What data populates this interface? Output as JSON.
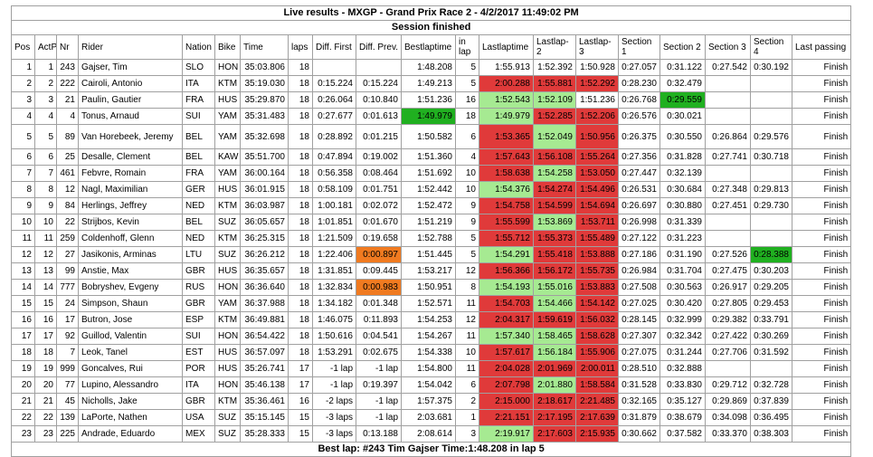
{
  "title": "Live results - MXGP - Grand Prix Race 2 - 4/2/2017 11:49:02 PM",
  "status": "Session finished",
  "footer": "Best lap: #243 Tim Gajser Time:1:48.208 in lap 5",
  "headers": [
    "Pos",
    "ActP",
    "Nr",
    "Rider",
    "Nation",
    "Bike",
    "Time",
    "laps",
    "Diff. First",
    "Diff. Prev.",
    "Bestlaptime",
    "in lap",
    "Lastlaptime",
    "Lastlap-2",
    "Lastlap-3",
    "Section 1",
    "Section 2",
    "Section 3",
    "Section 4",
    "Last passing"
  ],
  "rows": [
    {
      "pos": "1",
      "actp": "1",
      "nr": "243",
      "rider": "Gajser, Tim",
      "nation": "SLO",
      "bike": "HON",
      "time": "35:03.806",
      "laps": "18",
      "dfirst": "",
      "dprev": "",
      "best": "1:48.208",
      "inlap": "5",
      "last": "1:55.913",
      "l2": "1:52.392",
      "l3": "1:50.928",
      "s1": "0:27.057",
      "s2": "0:31.122",
      "s3": "0:27.542",
      "s4": "0:30.192",
      "lastp": "Finish"
    },
    {
      "pos": "2",
      "actp": "2",
      "nr": "222",
      "rider": "Cairoli, Antonio",
      "nation": "ITA",
      "bike": "KTM",
      "time": "35:19.030",
      "laps": "18",
      "dfirst": "0:15.224",
      "dprev": "0:15.224",
      "best": "1:49.213",
      "inlap": "5",
      "last": "2:00.288",
      "l2": "1:55.881",
      "l3": "1:52.292",
      "s1": "0:28.230",
      "s2": "0:32.479",
      "s3": "",
      "s4": "",
      "lastp": "Finish"
    },
    {
      "pos": "3",
      "actp": "3",
      "nr": "21",
      "rider": "Paulin, Gautier",
      "nation": "FRA",
      "bike": "HUS",
      "time": "35:29.870",
      "laps": "18",
      "dfirst": "0:26.064",
      "dprev": "0:10.840",
      "best": "1:51.236",
      "inlap": "16",
      "last": "1:52.543",
      "l2": "1:52.109",
      "l3": "1:51.236",
      "s1": "0:26.768",
      "s2": "0:29.559",
      "s3": "",
      "s4": "",
      "lastp": "Finish"
    },
    {
      "pos": "4",
      "actp": "4",
      "nr": "4",
      "rider": "Tonus, Arnaud",
      "nation": "SUI",
      "bike": "YAM",
      "time": "35:31.483",
      "laps": "18",
      "dfirst": "0:27.677",
      "dprev": "0:01.613",
      "best": "1:49.979",
      "inlap": "18",
      "last": "1:49.979",
      "l2": "1:52.285",
      "l3": "1:52.206",
      "s1": "0:26.576",
      "s2": "0:30.021",
      "s3": "",
      "s4": "",
      "lastp": "Finish"
    },
    {
      "pos": "5",
      "actp": "5",
      "nr": "89",
      "rider": "Van Horebeek, Jeremy",
      "nation": "BEL",
      "bike": "YAM",
      "time": "35:32.698",
      "laps": "18",
      "dfirst": "0:28.892",
      "dprev": "0:01.215",
      "best": "1:50.582",
      "inlap": "6",
      "last": "1:53.365",
      "l2": "1:52.049",
      "l3": "1:50.956",
      "s1": "0:26.375",
      "s2": "0:30.550",
      "s3": "0:26.864",
      "s4": "0:29.576",
      "lastp": "Finish"
    },
    {
      "pos": "6",
      "actp": "6",
      "nr": "25",
      "rider": "Desalle, Clement",
      "nation": "BEL",
      "bike": "KAW",
      "time": "35:51.700",
      "laps": "18",
      "dfirst": "0:47.894",
      "dprev": "0:19.002",
      "best": "1:51.360",
      "inlap": "4",
      "last": "1:57.643",
      "l2": "1:56.108",
      "l3": "1:55.264",
      "s1": "0:27.356",
      "s2": "0:31.828",
      "s3": "0:27.741",
      "s4": "0:30.718",
      "lastp": "Finish"
    },
    {
      "pos": "7",
      "actp": "7",
      "nr": "461",
      "rider": "Febvre, Romain",
      "nation": "FRA",
      "bike": "YAM",
      "time": "36:00.164",
      "laps": "18",
      "dfirst": "0:56.358",
      "dprev": "0:08.464",
      "best": "1:51.692",
      "inlap": "10",
      "last": "1:58.638",
      "l2": "1:54.258",
      "l3": "1:53.050",
      "s1": "0:27.447",
      "s2": "0:32.139",
      "s3": "",
      "s4": "",
      "lastp": "Finish"
    },
    {
      "pos": "8",
      "actp": "8",
      "nr": "12",
      "rider": "Nagl, Maximilian",
      "nation": "GER",
      "bike": "HUS",
      "time": "36:01.915",
      "laps": "18",
      "dfirst": "0:58.109",
      "dprev": "0:01.751",
      "best": "1:52.442",
      "inlap": "10",
      "last": "1:54.376",
      "l2": "1:54.274",
      "l3": "1:54.496",
      "s1": "0:26.531",
      "s2": "0:30.684",
      "s3": "0:27.348",
      "s4": "0:29.813",
      "lastp": "Finish"
    },
    {
      "pos": "9",
      "actp": "9",
      "nr": "84",
      "rider": "Herlings, Jeffrey",
      "nation": "NED",
      "bike": "KTM",
      "time": "36:03.987",
      "laps": "18",
      "dfirst": "1:00.181",
      "dprev": "0:02.072",
      "best": "1:52.472",
      "inlap": "9",
      "last": "1:54.758",
      "l2": "1:54.599",
      "l3": "1:54.694",
      "s1": "0:26.697",
      "s2": "0:30.880",
      "s3": "0:27.451",
      "s4": "0:29.730",
      "lastp": "Finish"
    },
    {
      "pos": "10",
      "actp": "10",
      "nr": "22",
      "rider": "Strijbos, Kevin",
      "nation": "BEL",
      "bike": "SUZ",
      "time": "36:05.657",
      "laps": "18",
      "dfirst": "1:01.851",
      "dprev": "0:01.670",
      "best": "1:51.219",
      "inlap": "9",
      "last": "1:55.599",
      "l2": "1:53.869",
      "l3": "1:53.711",
      "s1": "0:26.998",
      "s2": "0:31.339",
      "s3": "",
      "s4": "",
      "lastp": "Finish"
    },
    {
      "pos": "11",
      "actp": "11",
      "nr": "259",
      "rider": "Coldenhoff, Glenn",
      "nation": "NED",
      "bike": "KTM",
      "time": "36:25.315",
      "laps": "18",
      "dfirst": "1:21.509",
      "dprev": "0:19.658",
      "best": "1:52.788",
      "inlap": "5",
      "last": "1:55.712",
      "l2": "1:55.373",
      "l3": "1:55.489",
      "s1": "0:27.122",
      "s2": "0:31.223",
      "s3": "",
      "s4": "",
      "lastp": "Finish"
    },
    {
      "pos": "12",
      "actp": "12",
      "nr": "27",
      "rider": "Jasikonis, Arminas",
      "nation": "LTU",
      "bike": "SUZ",
      "time": "36:26.212",
      "laps": "18",
      "dfirst": "1:22.406",
      "dprev": "0:00.897",
      "best": "1:51.445",
      "inlap": "5",
      "last": "1:54.291",
      "l2": "1:55.418",
      "l3": "1:53.888",
      "s1": "0:27.186",
      "s2": "0:31.190",
      "s3": "0:27.526",
      "s4": "0:28.388",
      "lastp": "Finish"
    },
    {
      "pos": "13",
      "actp": "13",
      "nr": "99",
      "rider": "Anstie, Max",
      "nation": "GBR",
      "bike": "HUS",
      "time": "36:35.657",
      "laps": "18",
      "dfirst": "1:31.851",
      "dprev": "0:09.445",
      "best": "1:53.217",
      "inlap": "12",
      "last": "1:56.366",
      "l2": "1:56.172",
      "l3": "1:55.735",
      "s1": "0:26.984",
      "s2": "0:31.704",
      "s3": "0:27.475",
      "s4": "0:30.203",
      "lastp": "Finish"
    },
    {
      "pos": "14",
      "actp": "14",
      "nr": "777",
      "rider": "Bobryshev, Evgeny",
      "nation": "RUS",
      "bike": "HON",
      "time": "36:36.640",
      "laps": "18",
      "dfirst": "1:32.834",
      "dprev": "0:00.983",
      "best": "1:50.951",
      "inlap": "8",
      "last": "1:54.193",
      "l2": "1:55.016",
      "l3": "1:53.883",
      "s1": "0:27.508",
      "s2": "0:30.563",
      "s3": "0:26.917",
      "s4": "0:29.205",
      "lastp": "Finish"
    },
    {
      "pos": "15",
      "actp": "15",
      "nr": "24",
      "rider": "Simpson, Shaun",
      "nation": "GBR",
      "bike": "YAM",
      "time": "36:37.988",
      "laps": "18",
      "dfirst": "1:34.182",
      "dprev": "0:01.348",
      "best": "1:52.571",
      "inlap": "11",
      "last": "1:54.703",
      "l2": "1:54.466",
      "l3": "1:54.142",
      "s1": "0:27.025",
      "s2": "0:30.420",
      "s3": "0:27.805",
      "s4": "0:29.453",
      "lastp": "Finish"
    },
    {
      "pos": "16",
      "actp": "16",
      "nr": "17",
      "rider": "Butron, Jose",
      "nation": "ESP",
      "bike": "KTM",
      "time": "36:49.881",
      "laps": "18",
      "dfirst": "1:46.075",
      "dprev": "0:11.893",
      "best": "1:54.253",
      "inlap": "12",
      "last": "2:04.317",
      "l2": "1:59.619",
      "l3": "1:56.032",
      "s1": "0:28.145",
      "s2": "0:32.999",
      "s3": "0:29.382",
      "s4": "0:33.791",
      "lastp": "Finish"
    },
    {
      "pos": "17",
      "actp": "17",
      "nr": "92",
      "rider": "Guillod, Valentin",
      "nation": "SUI",
      "bike": "HON",
      "time": "36:54.422",
      "laps": "18",
      "dfirst": "1:50.616",
      "dprev": "0:04.541",
      "best": "1:54.267",
      "inlap": "11",
      "last": "1:57.340",
      "l2": "1:58.465",
      "l3": "1:58.628",
      "s1": "0:27.307",
      "s2": "0:32.342",
      "s3": "0:27.422",
      "s4": "0:30.269",
      "lastp": "Finish"
    },
    {
      "pos": "18",
      "actp": "18",
      "nr": "7",
      "rider": "Leok, Tanel",
      "nation": "EST",
      "bike": "HUS",
      "time": "36:57.097",
      "laps": "18",
      "dfirst": "1:53.291",
      "dprev": "0:02.675",
      "best": "1:54.338",
      "inlap": "10",
      "last": "1:57.617",
      "l2": "1:56.184",
      "l3": "1:55.906",
      "s1": "0:27.075",
      "s2": "0:31.244",
      "s3": "0:27.706",
      "s4": "0:31.592",
      "lastp": "Finish"
    },
    {
      "pos": "19",
      "actp": "19",
      "nr": "999",
      "rider": "Goncalves, Rui",
      "nation": "POR",
      "bike": "HUS",
      "time": "35:26.741",
      "laps": "17",
      "dfirst": "-1 lap",
      "dprev": "-1 lap",
      "best": "1:54.800",
      "inlap": "11",
      "last": "2:04.028",
      "l2": "2:01.969",
      "l3": "2:00.011",
      "s1": "0:28.510",
      "s2": "0:32.888",
      "s3": "",
      "s4": "",
      "lastp": "Finish"
    },
    {
      "pos": "20",
      "actp": "20",
      "nr": "77",
      "rider": "Lupino, Alessandro",
      "nation": "ITA",
      "bike": "HON",
      "time": "35:46.138",
      "laps": "17",
      "dfirst": "-1 lap",
      "dprev": "0:19.397",
      "best": "1:54.042",
      "inlap": "6",
      "last": "2:07.798",
      "l2": "2:01.880",
      "l3": "1:58.584",
      "s1": "0:31.528",
      "s2": "0:33.830",
      "s3": "0:29.712",
      "s4": "0:32.728",
      "lastp": "Finish"
    },
    {
      "pos": "21",
      "actp": "21",
      "nr": "45",
      "rider": "Nicholls, Jake",
      "nation": "GBR",
      "bike": "KTM",
      "time": "35:36.461",
      "laps": "16",
      "dfirst": "-2 laps",
      "dprev": "-1 lap",
      "best": "1:57.375",
      "inlap": "2",
      "last": "2:15.000",
      "l2": "2:18.617",
      "l3": "2:21.485",
      "s1": "0:32.165",
      "s2": "0:35.127",
      "s3": "0:29.869",
      "s4": "0:37.839",
      "lastp": "Finish"
    },
    {
      "pos": "22",
      "actp": "22",
      "nr": "139",
      "rider": "LaPorte, Nathen",
      "nation": "USA",
      "bike": "SUZ",
      "time": "35:15.145",
      "laps": "15",
      "dfirst": "-3 laps",
      "dprev": "-1 lap",
      "best": "2:03.681",
      "inlap": "1",
      "last": "2:21.151",
      "l2": "2:17.195",
      "l3": "2:17.639",
      "s1": "0:31.879",
      "s2": "0:38.679",
      "s3": "0:34.098",
      "s4": "0:36.495",
      "lastp": "Finish"
    },
    {
      "pos": "23",
      "actp": "23",
      "nr": "225",
      "rider": "Andrade, Eduardo",
      "nation": "MEX",
      "bike": "SUZ",
      "time": "35:28.333",
      "laps": "15",
      "dfirst": "-3 laps",
      "dprev": "0:13.188",
      "best": "2:08.614",
      "inlap": "3",
      "last": "2:19.917",
      "l2": "2:17.603",
      "l3": "2:15.935",
      "s1": "0:30.662",
      "s2": "0:37.582",
      "s3": "0:33.370",
      "s4": "0:38.303",
      "lastp": "Finish"
    }
  ],
  "highlights": {
    "colors": {
      "red": "#e03a3a",
      "green": "#a6ea92",
      "orange": "#f07a20",
      "best": "#20b020"
    },
    "cells": {
      "1": {
        "last": "",
        "l2": "",
        "l3": ""
      },
      "2": {
        "last": "red",
        "l2": "red",
        "l3": "red"
      },
      "3": {
        "last": "green",
        "l2": "green",
        "l3": "",
        "s2": "best"
      },
      "4": {
        "best": "best",
        "last": "green",
        "l2": "red",
        "l3": "red"
      },
      "5": {
        "last": "red",
        "l2": "green",
        "l3": "red"
      },
      "6": {
        "last": "red",
        "l2": "red",
        "l3": "red"
      },
      "7": {
        "last": "red",
        "l2": "green",
        "l3": "red"
      },
      "8": {
        "last": "green",
        "l2": "red",
        "l3": "red"
      },
      "9": {
        "last": "red",
        "l2": "red",
        "l3": "red"
      },
      "10": {
        "last": "red",
        "l2": "green",
        "l3": "red"
      },
      "11": {
        "last": "red",
        "l2": "red",
        "l3": "red"
      },
      "12": {
        "dprev": "orange",
        "last": "green",
        "l2": "red",
        "l3": "red",
        "s4": "best"
      },
      "13": {
        "last": "red",
        "l2": "red",
        "l3": "red"
      },
      "14": {
        "dprev": "orange",
        "last": "green",
        "l2": "green",
        "l3": "red"
      },
      "15": {
        "last": "red",
        "l2": "green",
        "l3": "red"
      },
      "16": {
        "last": "red",
        "l2": "red",
        "l3": "red"
      },
      "17": {
        "last": "green",
        "l2": "green",
        "l3": "red"
      },
      "18": {
        "last": "red",
        "l2": "green",
        "l3": "red"
      },
      "19": {
        "last": "red",
        "l2": "red",
        "l3": "red"
      },
      "20": {
        "last": "red",
        "l2": "green",
        "l3": "red"
      },
      "21": {
        "last": "red",
        "l2": "red",
        "l3": "red"
      },
      "22": {
        "last": "red",
        "l2": "red",
        "l3": "red"
      },
      "23": {
        "last": "green",
        "l2": "red",
        "l3": "red"
      }
    }
  }
}
